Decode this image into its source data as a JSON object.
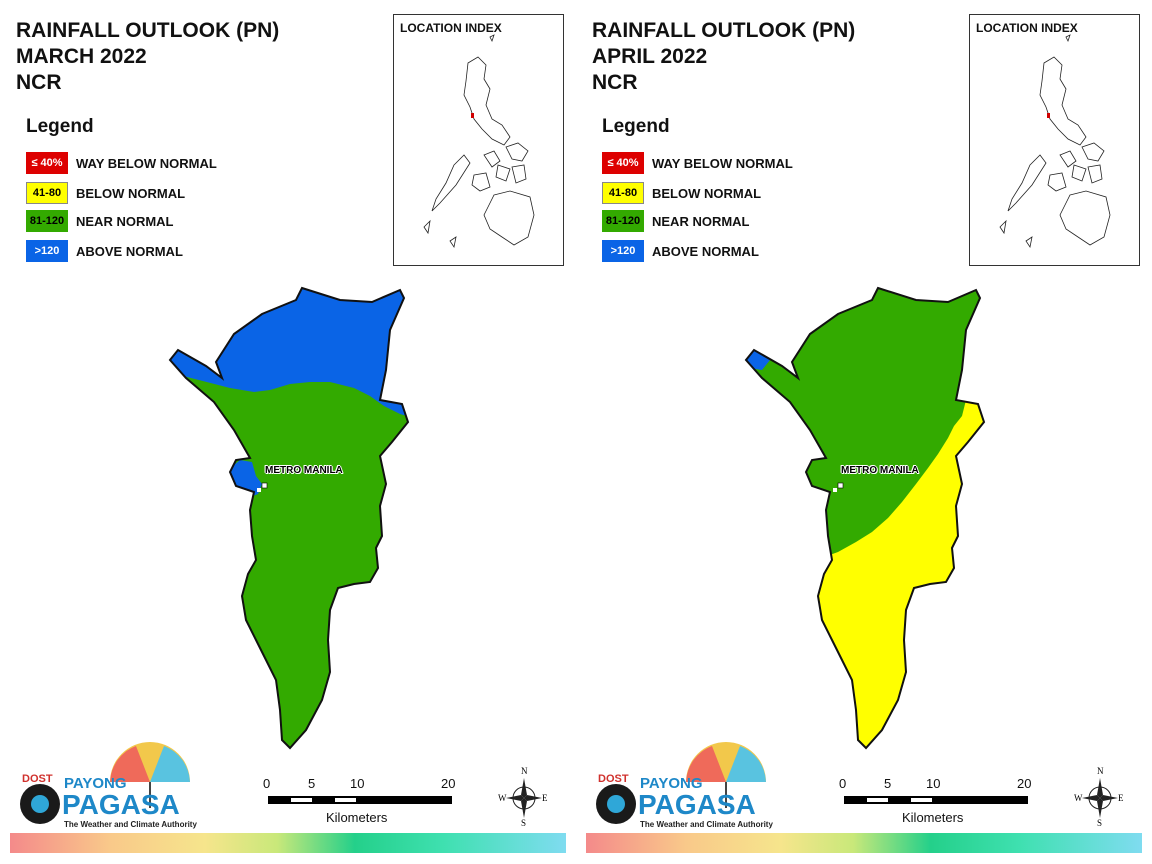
{
  "panels": [
    {
      "title_line1": "RAINFALL OUTLOOK (PN)",
      "title_line2": "MARCH 2022",
      "title_line3": "NCR",
      "legend_title": "Legend",
      "legend": [
        {
          "swatch": "≤ 40%",
          "label": "WAY BELOW NORMAL",
          "color": "#dd0000"
        },
        {
          "swatch": "41-80",
          "label": "BELOW NORMAL",
          "color": "#ffff00"
        },
        {
          "swatch": "81-120",
          "label": "NEAR NORMAL",
          "color": "#33aa00"
        },
        {
          "swatch": ">120",
          "label": "ABOVE NORMAL",
          "color": "#0a64e6"
        }
      ],
      "inset_title": "LOCATION INDEX",
      "place_label": "METRO MANILA",
      "scale_ticks": [
        "0",
        "5",
        "10",
        "20"
      ],
      "scale_unit": "Kilometers",
      "compass": {
        "n": "N",
        "s": "S",
        "e": "E",
        "w": "W"
      },
      "logo": {
        "dost": "DOST",
        "payong": "PAYONG",
        "pagasa": "PAGASA",
        "tagline": "The Weather and Climate Authority"
      },
      "regions": [
        "above-normal north",
        "near-normal center and south",
        "above-normal small west patch"
      ]
    },
    {
      "title_line1": "RAINFALL OUTLOOK (PN)",
      "title_line2": "APRIL 2022",
      "title_line3": "NCR",
      "legend_title": "Legend",
      "legend": [
        {
          "swatch": "≤ 40%",
          "label": "WAY BELOW NORMAL",
          "color": "#dd0000"
        },
        {
          "swatch": "41-80",
          "label": "BELOW NORMAL",
          "color": "#ffff00"
        },
        {
          "swatch": "81-120",
          "label": "NEAR NORMAL",
          "color": "#33aa00"
        },
        {
          "swatch": ">120",
          "label": "ABOVE NORMAL",
          "color": "#0a64e6"
        }
      ],
      "inset_title": "LOCATION INDEX",
      "place_label": "METRO MANILA",
      "scale_ticks": [
        "0",
        "5",
        "10",
        "20"
      ],
      "scale_unit": "Kilometers",
      "compass": {
        "n": "N",
        "s": "S",
        "e": "E",
        "w": "W"
      },
      "logo": {
        "dost": "DOST",
        "payong": "PAYONG",
        "pagasa": "PAGASA",
        "tagline": "The Weather and Climate Authority"
      },
      "regions": [
        "near-normal north and center",
        "below-normal south-east",
        "above-normal small north-west tip"
      ]
    }
  ]
}
